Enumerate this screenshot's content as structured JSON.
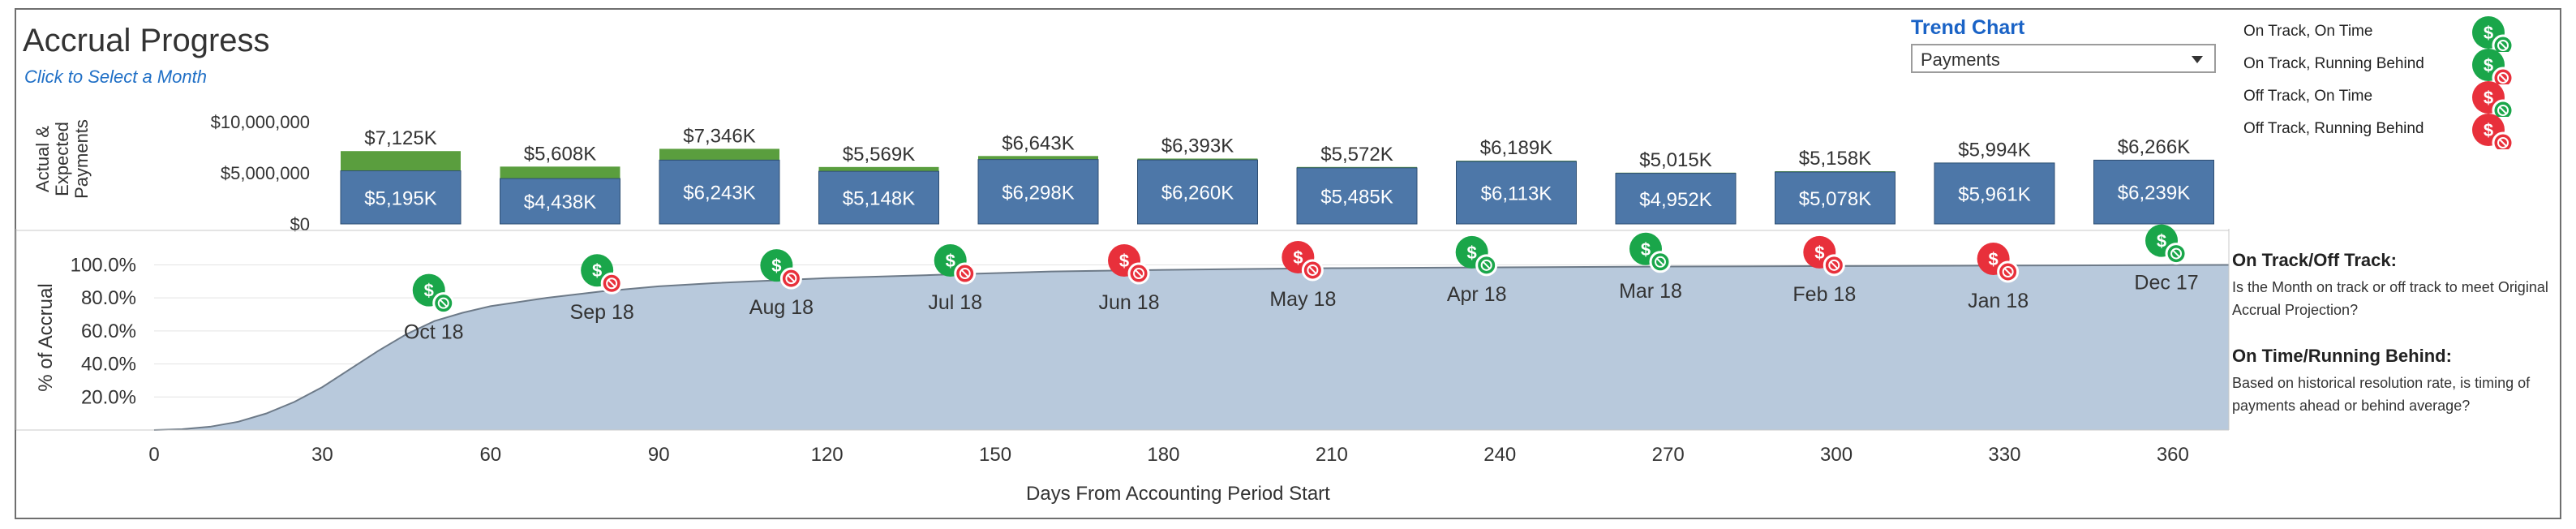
{
  "header": {
    "title": "Accrual Progress",
    "subtitle": "Click to Select a Month"
  },
  "trend": {
    "label": "Trend Chart",
    "selected": "Payments"
  },
  "legend": [
    {
      "label": "On Track, On Time",
      "track": "on",
      "time": "on",
      "colors": {
        "main": "#1aa64a",
        "small": "#1aa64a"
      }
    },
    {
      "label": "On Track, Running Behind",
      "track": "on",
      "time": "behind",
      "colors": {
        "main": "#1aa64a",
        "small": "#e8303b"
      }
    },
    {
      "label": "Off Track, On Time",
      "track": "off",
      "time": "on",
      "colors": {
        "main": "#e8303b",
        "small": "#1aa64a"
      }
    },
    {
      "label": "Off Track, Running Behind",
      "track": "off",
      "time": "behind",
      "colors": {
        "main": "#e8303b",
        "small": "#e8303b"
      }
    }
  ],
  "notes": [
    {
      "heading": "On Track/Off Track:",
      "body": "Is the Month on track or off track to meet Original Accrual Projection?"
    },
    {
      "heading": "On Time/Running Behind:",
      "body": "Based on historical resolution rate, is timing of payments ahead or behind average?"
    }
  ],
  "colors": {
    "actual": "#4d77a8",
    "expected": "#5a9e3e",
    "area": "#b8c9dc",
    "areaLine": "#6d7a88",
    "green": "#1aa64a",
    "red": "#e8303b"
  },
  "chart_data": [
    {
      "type": "bar",
      "ylabel": "Actual & Expected Payments",
      "yticks": [
        "$10,000,000",
        "$5,000,000",
        "$0"
      ],
      "ylim": [
        0,
        10000000
      ],
      "series": [
        {
          "name": "Actual",
          "values": [
            5195000,
            4438000,
            6243000,
            5148000,
            6298000,
            6260000,
            5485000,
            6113000,
            4952000,
            5078000,
            5961000,
            6239000
          ]
        },
        {
          "name": "Expected",
          "values": [
            7125000,
            5608000,
            7346000,
            5569000,
            6643000,
            6393000,
            5572000,
            6189000,
            5015000,
            5158000,
            5994000,
            6266000
          ]
        }
      ],
      "actual_labels": [
        "$5,195K",
        "$4,438K",
        "$6,243K",
        "$5,148K",
        "$6,298K",
        "$6,260K",
        "$5,485K",
        "$6,113K",
        "$4,952K",
        "$5,078K",
        "$5,961K",
        "$6,239K"
      ],
      "expected_labels": [
        "$7,125K",
        "$5,608K",
        "$7,346K",
        "$5,569K",
        "$6,643K",
        "$6,393K",
        "$5,572K",
        "$6,189K",
        "$5,015K",
        "$5,158K",
        "$5,994K",
        "$6,266K"
      ]
    },
    {
      "type": "area",
      "ylabel": "% of Accrual",
      "xlabel": "Days From Accounting Period Start",
      "xlim": [
        0,
        370
      ],
      "ylim": [
        0,
        1.13
      ],
      "yticks": [
        "100.0%",
        "80.0%",
        "60.0%",
        "40.0%",
        "20.0%"
      ],
      "ytick_values": [
        1.0,
        0.8,
        0.6,
        0.4,
        0.2
      ],
      "xticks": [
        0,
        30,
        60,
        90,
        120,
        150,
        180,
        210,
        240,
        270,
        300,
        330,
        360
      ],
      "curve": {
        "x": [
          0,
          5,
          10,
          15,
          20,
          25,
          30,
          35,
          40,
          45,
          50,
          55,
          60,
          70,
          80,
          90,
          100,
          120,
          140,
          160,
          180,
          210,
          240,
          270,
          300,
          330,
          360,
          370
        ],
        "y": [
          0,
          0.005,
          0.02,
          0.05,
          0.1,
          0.17,
          0.26,
          0.37,
          0.48,
          0.58,
          0.66,
          0.71,
          0.75,
          0.8,
          0.84,
          0.87,
          0.89,
          0.92,
          0.94,
          0.96,
          0.97,
          0.98,
          0.985,
          0.99,
          0.993,
          0.996,
          0.999,
          1.0
        ]
      },
      "markers": [
        {
          "month": "Oct 18",
          "x": 49,
          "y": 0.66,
          "track": "on",
          "time": "on"
        },
        {
          "month": "Sep 18",
          "x": 79,
          "y": 0.78,
          "track": "on",
          "time": "behind"
        },
        {
          "month": "Aug 18",
          "x": 111,
          "y": 0.81,
          "track": "on",
          "time": "behind"
        },
        {
          "month": "Jul 18",
          "x": 142,
          "y": 0.84,
          "track": "on",
          "time": "behind"
        },
        {
          "month": "Jun 18",
          "x": 173,
          "y": 0.84,
          "track": "off",
          "time": "behind"
        },
        {
          "month": "May 18",
          "x": 204,
          "y": 0.86,
          "track": "off",
          "time": "behind"
        },
        {
          "month": "Apr 18",
          "x": 235,
          "y": 0.89,
          "track": "on",
          "time": "on"
        },
        {
          "month": "Mar 18",
          "x": 266,
          "y": 0.91,
          "track": "on",
          "time": "on"
        },
        {
          "month": "Feb 18",
          "x": 297,
          "y": 0.89,
          "track": "off",
          "time": "behind"
        },
        {
          "month": "Jan 18",
          "x": 328,
          "y": 0.85,
          "track": "off",
          "time": "behind"
        },
        {
          "month": "Dec 17",
          "x": 358,
          "y": 0.96,
          "track": "on",
          "time": "on"
        }
      ]
    }
  ]
}
